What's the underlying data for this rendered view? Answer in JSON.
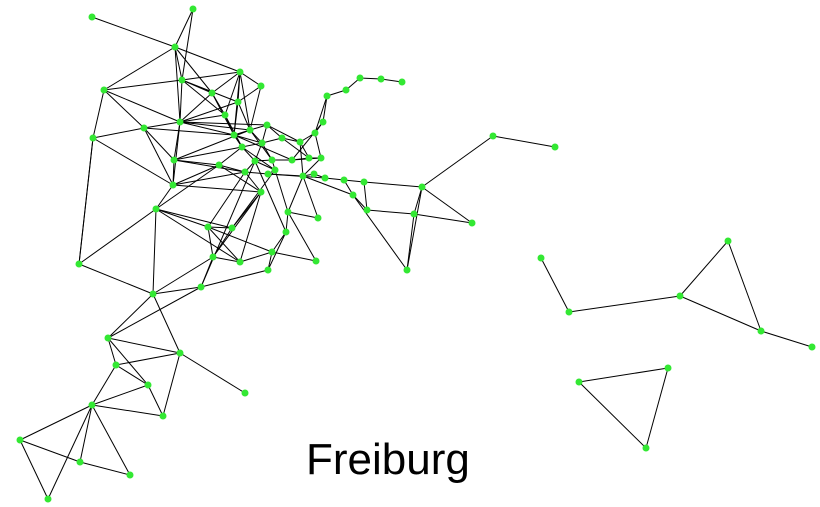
{
  "caption": "Freiburg",
  "colors": {
    "node": "#33e833",
    "edge": "#000000",
    "background": "#ffffff"
  }
}
